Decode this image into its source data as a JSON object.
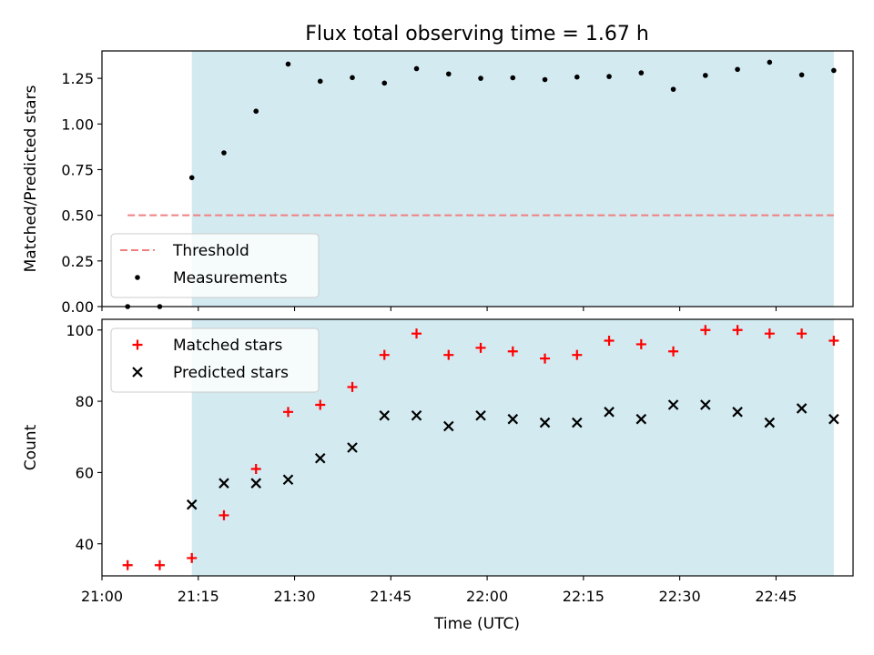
{
  "chart_data": {
    "title": "Flux total observing time = 1.67 h",
    "x_label": "Time (UTC)",
    "x_range": [
      "21:00",
      "22:57"
    ],
    "x_ticks": [
      "21:00",
      "21:15",
      "21:30",
      "21:45",
      "22:00",
      "22:15",
      "22:30",
      "22:45"
    ],
    "shaded_region": {
      "start": "21:14",
      "end": "22:54",
      "color": "#d3eaf1"
    },
    "times": [
      "21:04",
      "21:09",
      "21:14",
      "21:19",
      "21:24",
      "21:29",
      "21:34",
      "21:39",
      "21:44",
      "21:49",
      "21:54",
      "21:59",
      "22:04",
      "22:09",
      "22:14",
      "22:19",
      "22:24",
      "22:29",
      "22:34",
      "22:39",
      "22:44",
      "22:49",
      "22:54"
    ],
    "panels": [
      {
        "type": "scatter",
        "y_label": "Matched/Predicted stars",
        "y_range": [
          0,
          1.4
        ],
        "y_ticks": [
          "0.00",
          "0.25",
          "0.50",
          "0.75",
          "1.00",
          "1.25"
        ],
        "threshold": {
          "name": "Threshold",
          "value": 0.5,
          "start": "21:04",
          "end": "22:54",
          "color": "#f08080"
        },
        "series": [
          {
            "name": "Measurements",
            "color": "#000000",
            "marker": "dot",
            "values": [
              0.0,
              0.0,
              0.706,
              0.842,
              1.07,
              1.328,
              1.234,
              1.254,
              1.224,
              1.303,
              1.274,
              1.25,
              1.253,
              1.243,
              1.257,
              1.26,
              1.28,
              1.19,
              1.266,
              1.299,
              1.338,
              1.269,
              1.293
            ]
          }
        ],
        "legend_position": "bottom-left"
      },
      {
        "type": "scatter",
        "y_label": "Count",
        "y_range": [
          31,
          103
        ],
        "y_ticks": [
          "40",
          "60",
          "80",
          "100"
        ],
        "series": [
          {
            "name": "Matched stars",
            "color": "#ff0000",
            "marker": "plus",
            "values": [
              34,
              34,
              36,
              48,
              61,
              77,
              79,
              84,
              93,
              99,
              93,
              95,
              94,
              92,
              93,
              97,
              96,
              94,
              100,
              100,
              99,
              99,
              97
            ]
          },
          {
            "name": "Predicted stars",
            "color": "#000000",
            "marker": "x",
            "values": [
              null,
              null,
              51,
              57,
              57,
              58,
              64,
              67,
              76,
              76,
              73,
              76,
              75,
              74,
              74,
              77,
              75,
              79,
              79,
              77,
              74,
              78,
              75
            ]
          }
        ],
        "legend_position": "top-left"
      }
    ]
  }
}
